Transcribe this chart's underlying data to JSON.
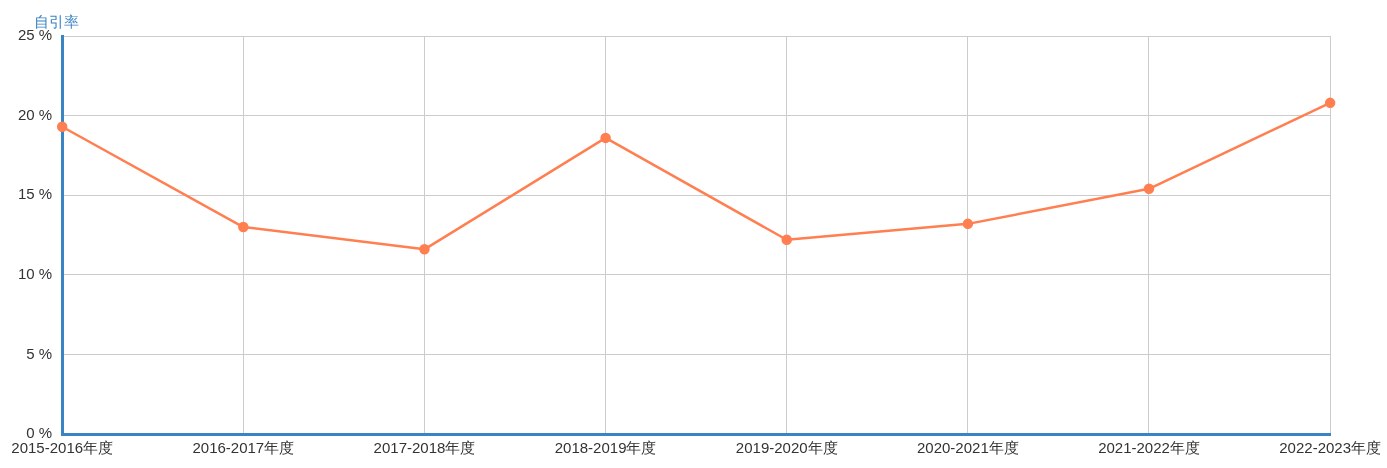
{
  "chart_data": {
    "type": "line",
    "ylabel": "自引率",
    "categories": [
      "2015-2016年度",
      "2016-2017年度",
      "2017-2018年度",
      "2018-2019年度",
      "2019-2020年度",
      "2020-2021年度",
      "2021-2022年度",
      "2022-2023年度"
    ],
    "series": [
      {
        "color": "#ff7f50",
        "values": [
          19.3,
          13.0,
          11.6,
          18.6,
          12.2,
          13.2,
          15.4,
          20.8
        ]
      }
    ],
    "ylim": [
      0,
      25
    ],
    "yticks": [
      {
        "value": 0,
        "label": "0 %"
      },
      {
        "value": 5,
        "label": "5 %"
      },
      {
        "value": 10,
        "label": "10 %"
      },
      {
        "value": 15,
        "label": "15 %"
      },
      {
        "value": 20,
        "label": "20 %"
      },
      {
        "value": 25,
        "label": "25 %"
      }
    ],
    "grid": true,
    "legend": false,
    "marker": "circle",
    "line_style": "solid"
  }
}
